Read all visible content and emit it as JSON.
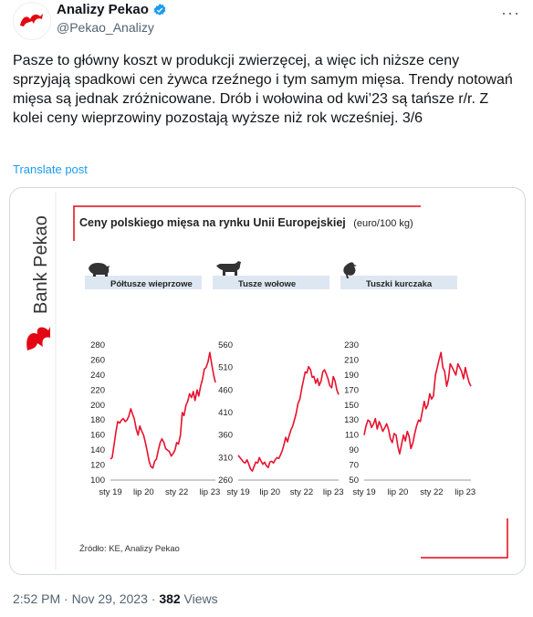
{
  "author": {
    "name": "Analizy Pekao",
    "handle": "@Pekao_Analizy"
  },
  "tweet": {
    "text": "Pasze to główny koszt w produkcji zwierzęcej, a więc ich niższe ceny sprzyjają spadkowi cen żywca rzeźnego i tym samym mięsa. Trendy notowań mięsa są jednak zróżnicowane. Drób i wołowina od kwi’23 są tańsze r/r. Z kolei ceny wieprzowiny pozostają wyższe niż rok wcześniej. 3/6",
    "translate_label": "Translate post",
    "time": "2:52 PM · Nov 29, 2023 · ",
    "views": "382",
    "views_label": " Views"
  },
  "colors": {
    "accent": "#1d9bf0",
    "brand_red": "#e30613",
    "line": "#e8112d"
  },
  "media": {
    "brand": "Bank Pekao",
    "title": "Ceny polskiego mięsa na rynku Unii Europejskiej",
    "title_unit": "(euro/100 kg)",
    "source": "Źródło: KE, Analizy Pekao"
  },
  "chart_data": [
    {
      "type": "line",
      "title": "Półtusze wieprzowe",
      "icon": "pig-icon",
      "x_ticks": [
        "sty 19",
        "lip 20",
        "sty 22",
        "lip 23"
      ],
      "y_ticks": [
        100,
        120,
        140,
        160,
        180,
        200,
        220,
        240,
        260,
        280
      ],
      "ylim": [
        100,
        280
      ],
      "x": [
        2019.0,
        2019.08,
        2019.17,
        2019.25,
        2019.33,
        2019.42,
        2019.5,
        2019.58,
        2019.67,
        2019.75,
        2019.83,
        2019.92,
        2020.0,
        2020.08,
        2020.17,
        2020.25,
        2020.33,
        2020.42,
        2020.5,
        2020.58,
        2020.67,
        2020.75,
        2020.83,
        2020.92,
        2021.0,
        2021.08,
        2021.17,
        2021.25,
        2021.33,
        2021.42,
        2021.5,
        2021.58,
        2021.67,
        2021.75,
        2021.83,
        2021.92,
        2022.0,
        2022.08,
        2022.17,
        2022.25,
        2022.33,
        2022.42,
        2022.5,
        2022.58,
        2022.67,
        2022.75,
        2022.83,
        2022.92,
        2023.0,
        2023.08,
        2023.17,
        2023.25,
        2023.33,
        2023.42,
        2023.5,
        2023.58,
        2023.67,
        2023.75
      ],
      "values": [
        128,
        130,
        148,
        165,
        178,
        176,
        180,
        182,
        178,
        180,
        185,
        195,
        188,
        182,
        168,
        160,
        172,
        165,
        160,
        150,
        138,
        125,
        118,
        116,
        125,
        128,
        140,
        150,
        155,
        150,
        142,
        140,
        138,
        132,
        135,
        140,
        150,
        148,
        160,
        190,
        186,
        200,
        205,
        215,
        210,
        218,
        206,
        220,
        212,
        225,
        235,
        248,
        250,
        258,
        270,
        255,
        240,
        230
      ],
      "title_label": "",
      "xlabel": "",
      "ylabel": ""
    },
    {
      "type": "line",
      "title": "Tusze wołowe",
      "icon": "cow-icon",
      "x_ticks": [
        "sty 19",
        "lip 20",
        "sty 22",
        "lip 23"
      ],
      "y_ticks": [
        260,
        310,
        360,
        410,
        460,
        510,
        560
      ],
      "ylim": [
        260,
        560
      ],
      "x": [
        2019.0,
        2019.08,
        2019.17,
        2019.25,
        2019.33,
        2019.42,
        2019.5,
        2019.58,
        2019.67,
        2019.75,
        2019.83,
        2019.92,
        2020.0,
        2020.08,
        2020.17,
        2020.25,
        2020.33,
        2020.42,
        2020.5,
        2020.58,
        2020.67,
        2020.75,
        2020.83,
        2020.92,
        2021.0,
        2021.08,
        2021.17,
        2021.25,
        2021.33,
        2021.42,
        2021.5,
        2021.58,
        2021.67,
        2021.75,
        2021.83,
        2021.92,
        2022.0,
        2022.08,
        2022.17,
        2022.25,
        2022.33,
        2022.42,
        2022.5,
        2022.58,
        2022.67,
        2022.75,
        2022.83,
        2022.92,
        2023.0,
        2023.08,
        2023.17,
        2023.25,
        2023.33,
        2023.42,
        2023.5,
        2023.58,
        2023.67,
        2023.75
      ],
      "values": [
        315,
        310,
        305,
        300,
        298,
        305,
        295,
        285,
        280,
        290,
        300,
        298,
        310,
        302,
        295,
        300,
        292,
        288,
        300,
        302,
        298,
        305,
        310,
        308,
        316,
        325,
        340,
        355,
        345,
        360,
        372,
        380,
        395,
        410,
        430,
        440,
        462,
        480,
        500,
        498,
        512,
        505,
        488,
        490,
        475,
        485,
        470,
        480,
        500,
        505,
        495,
        485,
        470,
        465,
        490,
        480,
        460,
        450
      ],
      "title_label": "",
      "xlabel": "",
      "ylabel": ""
    },
    {
      "type": "line",
      "title": "Tuszki kurczaka",
      "icon": "chicken-icon",
      "x_ticks": [
        "sty 19",
        "lip 20",
        "sty 22",
        "lip 23"
      ],
      "y_ticks": [
        50,
        70,
        90,
        110,
        130,
        150,
        170,
        190,
        210,
        230
      ],
      "ylim": [
        50,
        230
      ],
      "x": [
        2019.0,
        2019.08,
        2019.17,
        2019.25,
        2019.33,
        2019.42,
        2019.5,
        2019.58,
        2019.67,
        2019.75,
        2019.83,
        2019.92,
        2020.0,
        2020.08,
        2020.17,
        2020.25,
        2020.33,
        2020.42,
        2020.5,
        2020.58,
        2020.67,
        2020.75,
        2020.83,
        2020.92,
        2021.0,
        2021.08,
        2021.17,
        2021.25,
        2021.33,
        2021.42,
        2021.5,
        2021.58,
        2021.67,
        2021.75,
        2021.83,
        2021.92,
        2022.0,
        2022.08,
        2022.17,
        2022.25,
        2022.33,
        2022.42,
        2022.5,
        2022.58,
        2022.67,
        2022.75,
        2022.83,
        2022.92,
        2023.0,
        2023.08,
        2023.17,
        2023.25,
        2023.33,
        2023.42,
        2023.5,
        2023.58,
        2023.67,
        2023.75
      ],
      "values": [
        110,
        122,
        130,
        128,
        120,
        125,
        132,
        118,
        128,
        122,
        115,
        120,
        125,
        118,
        105,
        100,
        112,
        110,
        95,
        85,
        98,
        110,
        102,
        115,
        108,
        92,
        100,
        112,
        122,
        130,
        128,
        140,
        155,
        145,
        150,
        165,
        158,
        162,
        190,
        200,
        210,
        220,
        200,
        195,
        175,
        185,
        205,
        200,
        195,
        190,
        205,
        200,
        195,
        185,
        200,
        190,
        180,
        175
      ],
      "title_label": "",
      "xlabel": "",
      "ylabel": ""
    }
  ]
}
